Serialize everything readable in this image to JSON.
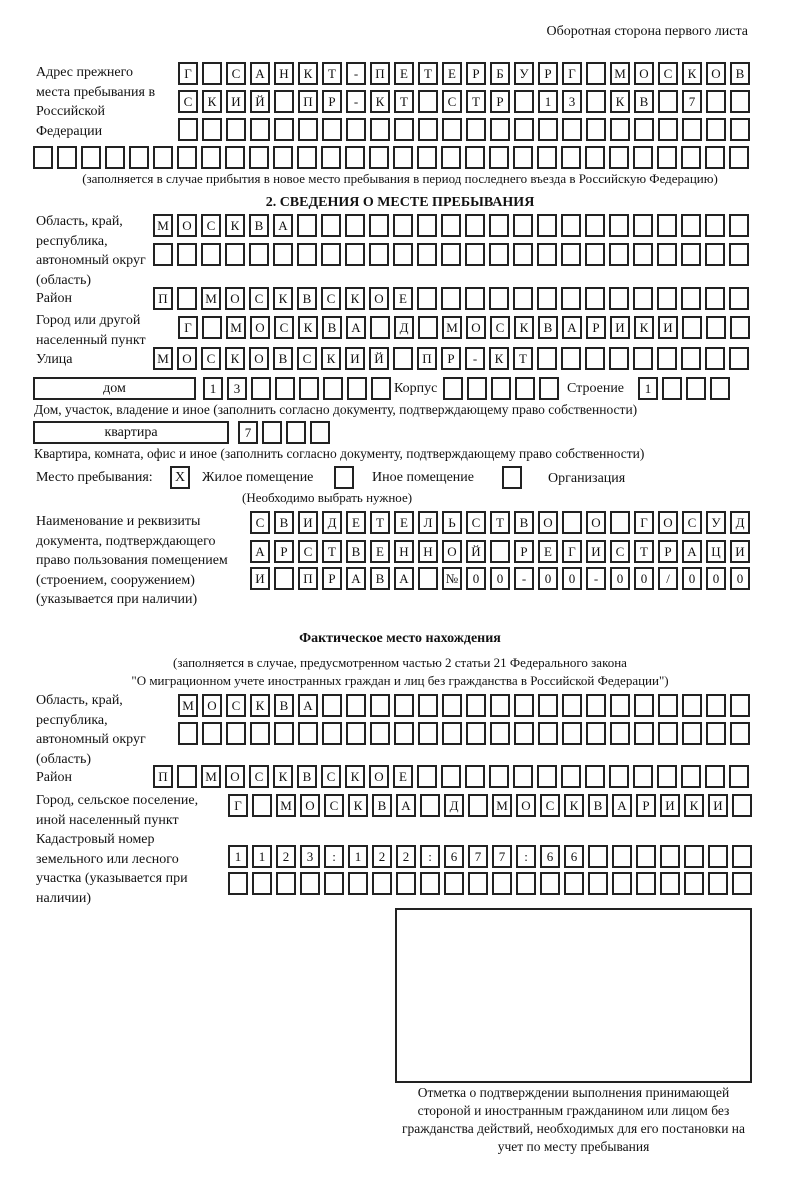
{
  "header": "Оборотная сторона первого листа",
  "prev_address": {
    "label": "Адрес прежнего места пребывания в Российской Федерации",
    "rows": [
      "Г САНКТ-ПЕТЕРБУРГ МОСКОВ",
      "СКИЙ ПР-КТ СТР 13 КВ 7",
      "",
      ""
    ],
    "note": "(заполняется в случае прибытия в новое место пребывания в период последнего въезда в Российскую Федерацию)"
  },
  "section2": {
    "title": "2. СВЕДЕНИЯ О МЕСТЕ ПРЕБЫВАНИЯ",
    "region_label": "Область, край, республика, автономный округ (область)",
    "region_rows": [
      "МОСКВА",
      ""
    ],
    "district_label": "Район",
    "district": "П МОСКВСКОЕ",
    "city_label": "Город или другой населенный пункт",
    "city": "Г МОСКВА Д МОСКВАРИКИ",
    "street_label": "Улица",
    "street": "МОСКОВСКИЙ ПР-КТ",
    "house_type": "дом",
    "house": "13",
    "korpus_label": "Корпус",
    "korpus": "",
    "building_label": "Строение",
    "building": "1",
    "house_note": "Дом, участок, владение и иное (заполнить согласно документу, подтверждающему право собственности)",
    "apt_type": "квартира",
    "apt": "7",
    "apt_note": "Квартира, комната, офис и иное (заполнить согласно документу, подтверждающему право собственности)",
    "stay_label": "Место пребывания:",
    "stay_options": [
      {
        "label": "Жилое помещение",
        "mark": "X"
      },
      {
        "label": "Иное помещение",
        "mark": ""
      },
      {
        "label": "Организация",
        "mark": ""
      }
    ],
    "stay_note": "(Необходимо выбрать нужное)",
    "doc_label": "Наименование и реквизиты документа, подтверждающего право пользования помещением (строением, сооружением) (указывается при наличии)",
    "doc_rows": [
      "СВИДЕТЕЛЬСТВО О ГОСУД",
      "АРСТВЕННОЙ РЕГИСТРАЦИ",
      "И ПРАВА №00-00-00/000"
    ]
  },
  "actual": {
    "title": "Фактическое место нахождения",
    "note1": "(заполняется в случае, предусмотренном частью 2 статьи 21 Федерального закона",
    "note2": "\"О миграционном учете иностранных граждан и лиц без гражданства в Российской Федерации\")",
    "region_label": "Область, край, республика, автономный округ (область)",
    "region_rows": [
      "МОСКВА",
      ""
    ],
    "district_label": "Район",
    "district": "П МОСКВСКОЕ",
    "city_label": "Город, сельское поселение, иной населенный пункт",
    "city": "Г МОСКВА Д МОСКВАРИКИ",
    "cadastre_label": "Кадастровый номер земельного или лесного участка (указывается при наличии)",
    "cadastre_rows": [
      "1123:122:677:66",
      ""
    ]
  },
  "stamp_caption": "Отметка о подтверждении выполнения принимающей стороной и иностранным гражданином или лицом без гражданства действий, необходимых для его постановки на учет по месту пребывания"
}
